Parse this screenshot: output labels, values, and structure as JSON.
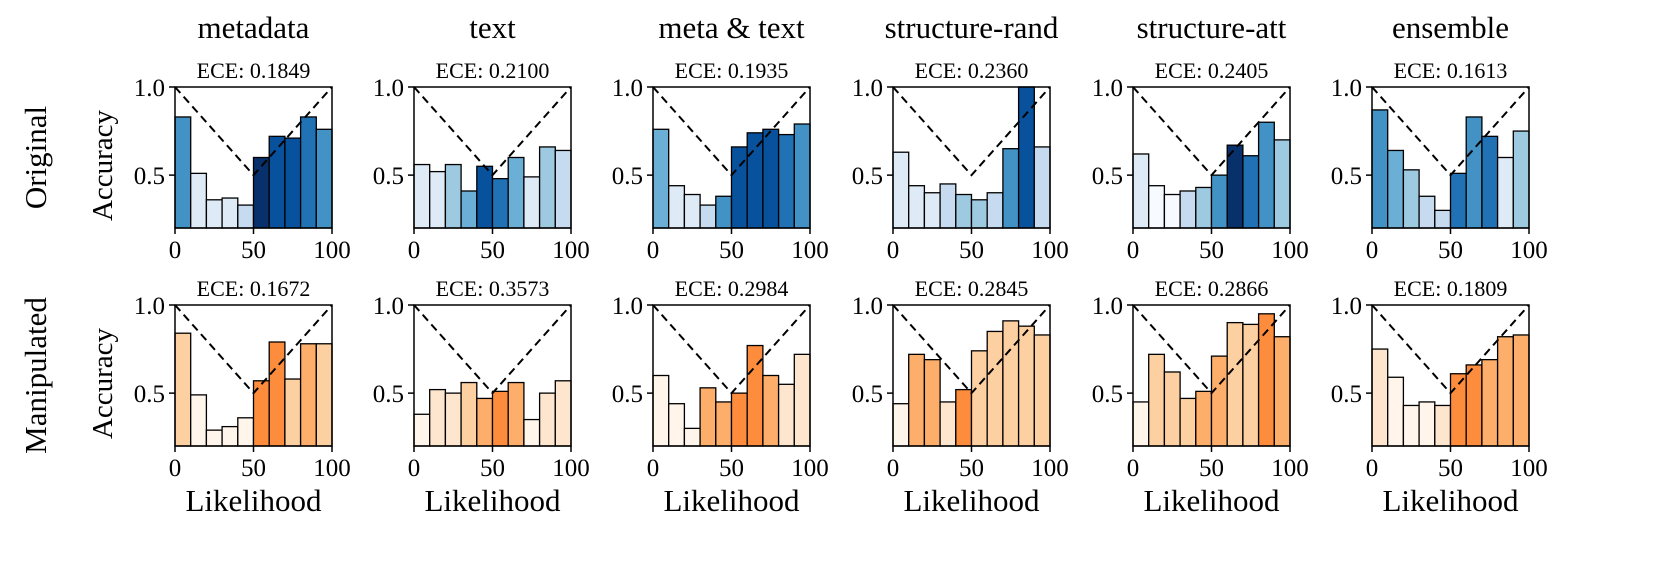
{
  "chart_data": {
    "type": "bar",
    "description_rows": [
      "Original",
      "Manipulated"
    ],
    "columns": [
      "metadata",
      "text",
      "meta & text",
      "structure-rand",
      "structure-att",
      "ensemble"
    ],
    "xlabel": "Likelihood",
    "ylabel": "Accuracy",
    "xlim": [
      0,
      100
    ],
    "ylim": [
      0.2,
      1.0
    ],
    "xticks": [
      "0",
      "50",
      "100"
    ],
    "yticks": [
      "0.5",
      "1.0"
    ],
    "bin_centers": [
      5,
      15,
      25,
      35,
      45,
      55,
      65,
      75,
      85,
      95
    ],
    "reference_line": "V-shaped dashed line from (0,1.0) to (50,0.5) to (100,1.0)",
    "palettes": {
      "Original": [
        "#f7fbff",
        "#deebf7",
        "#c6dbef",
        "#9ecae1",
        "#6baed6",
        "#4292c6",
        "#2171b5",
        "#08519c",
        "#08306b"
      ],
      "Manipulated": [
        "#fff5eb",
        "#fee6ce",
        "#fdd0a2",
        "#fdae6b",
        "#fd8d3c",
        "#f16913"
      ]
    },
    "panels": [
      {
        "row": "Original",
        "column": "metadata",
        "ece": "ECE: 0.1849",
        "values": [
          0.83,
          0.51,
          0.36,
          0.37,
          0.33,
          0.6,
          0.72,
          0.71,
          0.83,
          0.76
        ],
        "shades": [
          5,
          1,
          1,
          1,
          2,
          8,
          7,
          7,
          6,
          5
        ]
      },
      {
        "row": "Original",
        "column": "text",
        "ece": "ECE: 0.2100",
        "values": [
          0.56,
          0.52,
          0.56,
          0.41,
          0.55,
          0.48,
          0.6,
          0.49,
          0.66,
          0.64
        ],
        "shades": [
          1,
          1,
          3,
          4,
          7,
          6,
          4,
          1,
          3,
          2
        ]
      },
      {
        "row": "Original",
        "column": "meta & text",
        "ece": "ECE: 0.1935",
        "values": [
          0.76,
          0.44,
          0.39,
          0.33,
          0.38,
          0.66,
          0.74,
          0.76,
          0.73,
          0.79
        ],
        "shades": [
          4,
          1,
          1,
          2,
          5,
          7,
          7,
          7,
          6,
          5
        ]
      },
      {
        "row": "Original",
        "column": "structure-rand",
        "ece": "ECE: 0.2360",
        "values": [
          0.63,
          0.44,
          0.4,
          0.45,
          0.39,
          0.36,
          0.4,
          0.65,
          1.0,
          0.66
        ],
        "shades": [
          1,
          1,
          1,
          2,
          3,
          3,
          2,
          5,
          7,
          2
        ]
      },
      {
        "row": "Original",
        "column": "structure-att",
        "ece": "ECE: 0.2405",
        "values": [
          0.62,
          0.44,
          0.39,
          0.41,
          0.43,
          0.5,
          0.67,
          0.61,
          0.8,
          0.7
        ],
        "shades": [
          1,
          0,
          0,
          2,
          3,
          5,
          8,
          6,
          5,
          3
        ]
      },
      {
        "row": "Original",
        "column": "ensemble",
        "ece": "ECE: 0.1613",
        "values": [
          0.87,
          0.64,
          0.53,
          0.38,
          0.3,
          0.51,
          0.83,
          0.72,
          0.6,
          0.75
        ],
        "shades": [
          5,
          4,
          3,
          2,
          2,
          6,
          5,
          6,
          1,
          3
        ]
      },
      {
        "row": "Manipulated",
        "column": "metadata",
        "ece": "ECE: 0.1672",
        "values": [
          0.84,
          0.49,
          0.29,
          0.31,
          0.36,
          0.57,
          0.79,
          0.58,
          0.78,
          0.78
        ],
        "shades": [
          2,
          0,
          0,
          0,
          0,
          4,
          4,
          2,
          3,
          2
        ]
      },
      {
        "row": "Manipulated",
        "column": "text",
        "ece": "ECE: 0.3573",
        "values": [
          0.38,
          0.52,
          0.5,
          0.56,
          0.47,
          0.51,
          0.56,
          0.35,
          0.5,
          0.57
        ],
        "shades": [
          0,
          1,
          1,
          2,
          3,
          4,
          3,
          0,
          1,
          1
        ]
      },
      {
        "row": "Manipulated",
        "column": "meta & text",
        "ece": "ECE: 0.2984",
        "values": [
          0.6,
          0.44,
          0.3,
          0.53,
          0.45,
          0.5,
          0.77,
          0.6,
          0.55,
          0.72
        ],
        "shades": [
          0,
          0,
          0,
          3,
          3,
          4,
          4,
          3,
          1,
          1
        ]
      },
      {
        "row": "Manipulated",
        "column": "structure-rand",
        "ece": "ECE: 0.2845",
        "values": [
          0.44,
          0.72,
          0.69,
          0.45,
          0.52,
          0.74,
          0.85,
          0.91,
          0.88,
          0.83
        ],
        "shades": [
          0,
          3,
          3,
          1,
          4,
          2,
          2,
          2,
          2,
          2
        ]
      },
      {
        "row": "Manipulated",
        "column": "structure-att",
        "ece": "ECE: 0.2866",
        "values": [
          0.45,
          0.72,
          0.62,
          0.47,
          0.51,
          0.71,
          0.9,
          0.89,
          0.95,
          0.82
        ],
        "shades": [
          0,
          2,
          2,
          2,
          3,
          3,
          2,
          2,
          4,
          3
        ]
      },
      {
        "row": "Manipulated",
        "column": "ensemble",
        "ece": "ECE: 0.1809",
        "values": [
          0.75,
          0.59,
          0.43,
          0.45,
          0.43,
          0.61,
          0.66,
          0.69,
          0.82,
          0.83
        ],
        "shades": [
          1,
          0,
          0,
          0,
          1,
          4,
          4,
          3,
          3,
          3
        ]
      }
    ]
  }
}
